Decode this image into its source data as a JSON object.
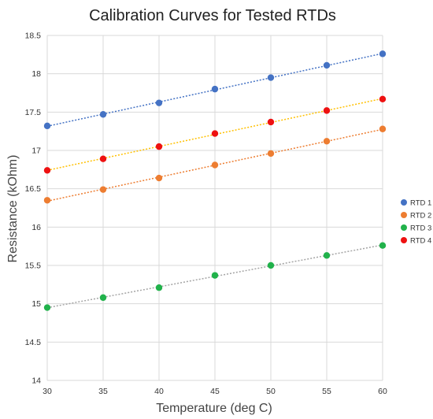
{
  "chart_data": {
    "type": "scatter",
    "title": "Calibration Curves for Tested RTDs",
    "xlabel": "Temperature (deg C)",
    "ylabel": "Resistance (kOhm)",
    "xlim": [
      30,
      60
    ],
    "ylim": [
      14,
      18.5
    ],
    "x_ticks": [
      30,
      35,
      40,
      45,
      50,
      55,
      60
    ],
    "y_ticks": [
      14,
      14.5,
      15,
      15.5,
      16,
      16.5,
      17,
      17.5,
      18,
      18.5
    ],
    "grid": true,
    "legend_position": "right",
    "x": [
      30,
      35,
      40,
      45,
      50,
      55,
      60
    ],
    "series": [
      {
        "name": "RTD 1",
        "color": "#4472C4",
        "trend_color": "#4472C4",
        "values": [
          17.32,
          17.47,
          17.62,
          17.8,
          17.95,
          18.11,
          18.26
        ]
      },
      {
        "name": "RTD 2",
        "color": "#ED7D31",
        "trend_color": "#ED7D31",
        "values": [
          16.35,
          16.49,
          16.64,
          16.81,
          16.96,
          17.12,
          17.28
        ]
      },
      {
        "name": "RTD 3",
        "color": "#21B24B",
        "trend_color": "#A5A5A5",
        "values": [
          14.95,
          15.08,
          15.21,
          15.37,
          15.5,
          15.63,
          15.76
        ]
      },
      {
        "name": "RTD 4",
        "color": "#EE1111",
        "trend_color": "#FFC000",
        "values": [
          16.74,
          16.89,
          17.05,
          17.22,
          17.37,
          17.52,
          17.67
        ]
      }
    ]
  }
}
